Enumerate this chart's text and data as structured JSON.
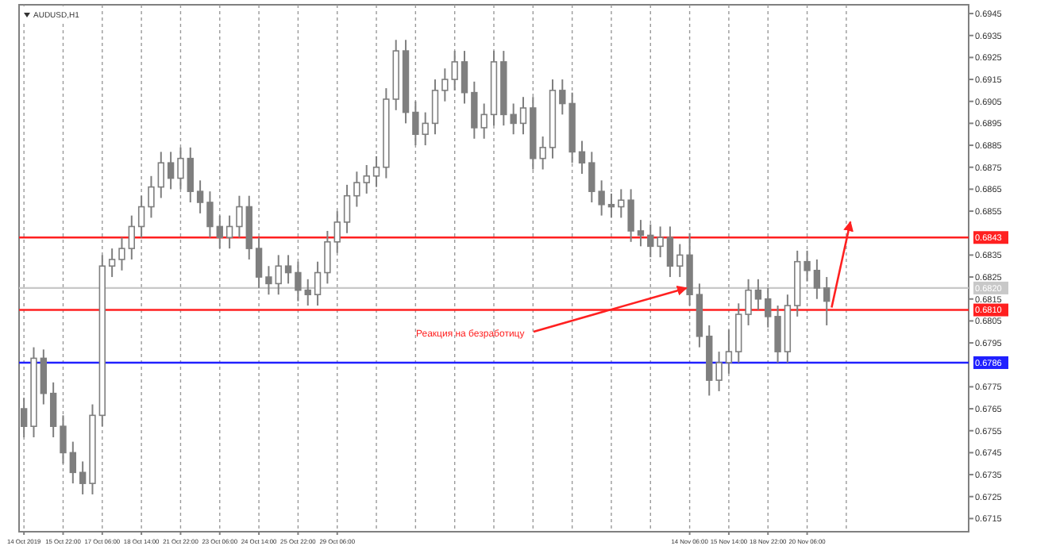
{
  "chart_data": {
    "type": "candlestick",
    "title": "AUDUSD,H1",
    "categories": [
      "14 Oct 2019",
      null,
      null,
      null,
      "15 Oct 22:00",
      null,
      null,
      null,
      "17 Oct 06:00",
      null,
      null,
      null,
      "18 Oct 14:00",
      null,
      null,
      null,
      "21 Oct 22:00",
      null,
      null,
      null,
      "23 Oct 06:00",
      null,
      null,
      null,
      "24 Oct 14:00",
      null,
      null,
      null,
      "25 Oct 22:00",
      null,
      null,
      null,
      "29 Oct 06:00",
      null,
      null,
      null,
      null,
      null,
      null,
      null,
      null,
      null,
      null,
      null,
      null,
      null,
      null,
      null,
      null,
      null,
      null,
      null,
      null,
      null,
      null,
      null,
      null,
      null,
      null,
      null,
      null,
      null,
      null,
      null,
      null,
      null,
      null,
      null,
      "14 Nov 06:00",
      null,
      null,
      null,
      "15 Nov 14:00",
      null,
      null,
      null,
      "18 Nov 22:00",
      null,
      null,
      null,
      "20 Nov 06:00",
      null,
      null,
      null,
      null,
      null,
      null,
      null,
      null,
      null,
      null,
      null,
      null,
      null,
      null,
      null,
      null
    ],
    "ohlc": [
      [
        0.6765,
        0.677,
        0.6752,
        0.6757
      ],
      [
        0.6757,
        0.6793,
        0.6752,
        0.6788
      ],
      [
        0.6788,
        0.6792,
        0.6767,
        0.6772
      ],
      [
        0.6772,
        0.6777,
        0.6752,
        0.6757
      ],
      [
        0.6757,
        0.6762,
        0.674,
        0.6745
      ],
      [
        0.6745,
        0.675,
        0.6731,
        0.6736
      ],
      [
        0.6736,
        0.6741,
        0.6726,
        0.6731
      ],
      [
        0.6731,
        0.6767,
        0.6726,
        0.6762
      ],
      [
        0.6762,
        0.6835,
        0.6757,
        0.683
      ],
      [
        0.683,
        0.6838,
        0.6825,
        0.6833
      ],
      [
        0.6833,
        0.6843,
        0.6828,
        0.6838
      ],
      [
        0.6838,
        0.6853,
        0.6833,
        0.6848
      ],
      [
        0.6848,
        0.6862,
        0.6843,
        0.6857
      ],
      [
        0.6857,
        0.6871,
        0.6852,
        0.6866
      ],
      [
        0.6866,
        0.6882,
        0.6861,
        0.6877
      ],
      [
        0.6877,
        0.6882,
        0.6865,
        0.687
      ],
      [
        0.687,
        0.6884,
        0.6865,
        0.6879
      ],
      [
        0.6879,
        0.6884,
        0.6859,
        0.6864
      ],
      [
        0.6864,
        0.6869,
        0.6854,
        0.6859
      ],
      [
        0.6859,
        0.6864,
        0.6843,
        0.6848
      ],
      [
        0.6848,
        0.6853,
        0.6838,
        0.6843
      ],
      [
        0.6843,
        0.6853,
        0.6838,
        0.6848
      ],
      [
        0.6848,
        0.6862,
        0.6843,
        0.6857
      ],
      [
        0.6857,
        0.6862,
        0.6833,
        0.6838
      ],
      [
        0.6838,
        0.6843,
        0.682,
        0.6825
      ],
      [
        0.6825,
        0.683,
        0.6817,
        0.6822
      ],
      [
        0.6822,
        0.6835,
        0.6817,
        0.683
      ],
      [
        0.683,
        0.6835,
        0.6822,
        0.6827
      ],
      [
        0.6827,
        0.6832,
        0.6814,
        0.6819
      ],
      [
        0.6819,
        0.6824,
        0.6812,
        0.6817
      ],
      [
        0.6817,
        0.6832,
        0.6812,
        0.6827
      ],
      [
        0.6827,
        0.6846,
        0.6822,
        0.6841
      ],
      [
        0.6841,
        0.6855,
        0.6836,
        0.685
      ],
      [
        0.685,
        0.6867,
        0.6845,
        0.6862
      ],
      [
        0.6862,
        0.6873,
        0.6857,
        0.6868
      ],
      [
        0.6868,
        0.6876,
        0.6863,
        0.6871
      ],
      [
        0.6871,
        0.688,
        0.6866,
        0.6875
      ],
      [
        0.6875,
        0.6911,
        0.687,
        0.6906
      ],
      [
        0.6906,
        0.6933,
        0.6901,
        0.6928
      ],
      [
        0.6928,
        0.6933,
        0.6895,
        0.69
      ],
      [
        0.69,
        0.6905,
        0.6885,
        0.689
      ],
      [
        0.689,
        0.69,
        0.6885,
        0.6895
      ],
      [
        0.6895,
        0.6915,
        0.689,
        0.691
      ],
      [
        0.691,
        0.692,
        0.6905,
        0.6915
      ],
      [
        0.6915,
        0.6928,
        0.691,
        0.6923
      ],
      [
        0.6923,
        0.6928,
        0.6904,
        0.6909
      ],
      [
        0.6909,
        0.6914,
        0.6888,
        0.6893
      ],
      [
        0.6893,
        0.6904,
        0.6888,
        0.6899
      ],
      [
        0.6899,
        0.6928,
        0.6894,
        0.6923
      ],
      [
        0.6923,
        0.6928,
        0.6894,
        0.6899
      ],
      [
        0.6899,
        0.6904,
        0.689,
        0.6895
      ],
      [
        0.6895,
        0.6907,
        0.689,
        0.6902
      ],
      [
        0.6902,
        0.6907,
        0.6874,
        0.6879
      ],
      [
        0.6879,
        0.6889,
        0.6874,
        0.6884
      ],
      [
        0.6884,
        0.6915,
        0.6879,
        0.691
      ],
      [
        0.691,
        0.6915,
        0.6899,
        0.6904
      ],
      [
        0.6904,
        0.6909,
        0.6877,
        0.6882
      ],
      [
        0.6882,
        0.6887,
        0.6872,
        0.6877
      ],
      [
        0.6877,
        0.6882,
        0.6859,
        0.6864
      ],
      [
        0.6864,
        0.6869,
        0.6853,
        0.6858
      ],
      [
        0.6858,
        0.6863,
        0.6852,
        0.6857
      ],
      [
        0.6857,
        0.6865,
        0.6852,
        0.686
      ],
      [
        0.686,
        0.6865,
        0.6841,
        0.6846
      ],
      [
        0.6846,
        0.6851,
        0.6839,
        0.6844
      ],
      [
        0.6844,
        0.6849,
        0.6834,
        0.6839
      ],
      [
        0.6839,
        0.6848,
        0.6834,
        0.6843
      ],
      [
        0.6843,
        0.6848,
        0.6825,
        0.683
      ],
      [
        0.683,
        0.684,
        0.6825,
        0.6835
      ],
      [
        0.6835,
        0.6845,
        0.6812,
        0.6817
      ],
      [
        0.6817,
        0.6822,
        0.6793,
        0.6798
      ],
      [
        0.6798,
        0.6803,
        0.6771,
        0.6778
      ],
      [
        0.6778,
        0.6791,
        0.6773,
        0.6786
      ],
      [
        0.6786,
        0.6801,
        0.6781,
        0.6791
      ],
      [
        0.6791,
        0.6813,
        0.6786,
        0.6808
      ],
      [
        0.6808,
        0.6824,
        0.6803,
        0.6819
      ],
      [
        0.6819,
        0.6824,
        0.681,
        0.6815
      ],
      [
        0.6815,
        0.682,
        0.6802,
        0.6807
      ],
      [
        0.6807,
        0.6812,
        0.6786,
        0.6791
      ],
      [
        0.6791,
        0.6817,
        0.6786,
        0.6812
      ],
      [
        0.6812,
        0.6837,
        0.6807,
        0.6832
      ],
      [
        0.6832,
        0.6837,
        0.6823,
        0.6828
      ],
      [
        0.6828,
        0.6833,
        0.6815,
        0.682
      ],
      [
        0.682,
        0.6825,
        0.6803,
        0.6814
      ],
      null,
      null,
      null,
      null,
      null,
      null,
      null,
      null,
      null,
      null,
      null,
      null,
      null,
      null
    ],
    "color": "#7f7f7f",
    "ylim": [
      0.6709,
      0.6949
    ],
    "yticks": [
      0.6945,
      0.6935,
      0.6925,
      0.6915,
      0.6905,
      0.6895,
      0.6885,
      0.6875,
      0.6865,
      0.6855,
      0.6835,
      0.6825,
      0.6815,
      0.6805,
      0.6795,
      0.6775,
      0.6765,
      0.6755,
      0.6745,
      0.6735,
      0.6725,
      0.6715
    ],
    "grid": "x",
    "ref_lines": [
      {
        "axis": "y",
        "value": 0.6843,
        "label": "0.6843",
        "color": "#ff2020"
      },
      {
        "axis": "y",
        "value": 0.682,
        "label": "0.6820",
        "color": "#c8c8c8"
      },
      {
        "axis": "y",
        "value": 0.681,
        "label": "0.6810",
        "color": "#ff2020"
      },
      {
        "axis": "y",
        "value": 0.6786,
        "label": "0.6786",
        "color": "#2020ff"
      }
    ],
    "annotations": [
      {
        "text": "Реакция на безработицу",
        "x": "14 Nov 06:00",
        "y": 0.682
      }
    ]
  }
}
